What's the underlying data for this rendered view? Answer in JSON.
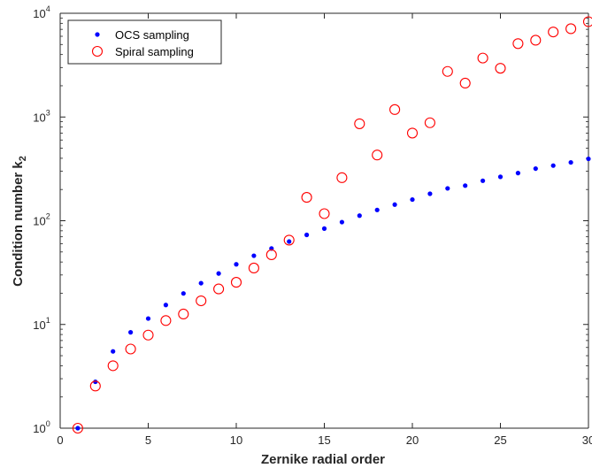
{
  "chart_data": {
    "type": "scatter",
    "xlabel": "Zernike radial order",
    "ylabel_main": "Condition number k",
    "ylabel_sub": "2",
    "xlim": [
      0,
      30
    ],
    "ylim": [
      1,
      10000
    ],
    "yscale": "log",
    "xticks": [
      0,
      5,
      10,
      15,
      20,
      25,
      30
    ],
    "yticks": [
      {
        "value": 1,
        "base": "10",
        "exp": "0"
      },
      {
        "value": 10,
        "base": "10",
        "exp": "1"
      },
      {
        "value": 100,
        "base": "10",
        "exp": "2"
      },
      {
        "value": 1000,
        "base": "10",
        "exp": "3"
      },
      {
        "value": 10000,
        "base": "10",
        "exp": "4"
      }
    ],
    "grid": false,
    "legend_position": "top-left",
    "series": [
      {
        "name": "OCS sampling",
        "marker": "filled-dot",
        "color": "#0000ff",
        "x": [
          1,
          2,
          3,
          4,
          5,
          6,
          7,
          8,
          9,
          10,
          11,
          12,
          13,
          14,
          15,
          16,
          17,
          18,
          19,
          20,
          21,
          22,
          23,
          24,
          25,
          26,
          27,
          28,
          29,
          30
        ],
        "y": [
          1.0,
          2.8,
          5.5,
          8.4,
          11.4,
          15.4,
          19.9,
          25,
          31,
          38,
          46,
          54,
          63,
          73,
          84,
          97,
          112,
          127,
          143,
          160,
          182,
          205,
          218,
          243,
          265,
          288,
          318,
          340,
          365,
          395
        ]
      },
      {
        "name": "Spiral sampling",
        "marker": "open-circle",
        "color": "#ff0000",
        "x": [
          1,
          2,
          3,
          4,
          5,
          6,
          7,
          8,
          9,
          10,
          11,
          12,
          13,
          14,
          15,
          16,
          17,
          18,
          19,
          20,
          21,
          22,
          23,
          24,
          25,
          26,
          27,
          28,
          29,
          30
        ],
        "y": [
          1.0,
          2.55,
          4.0,
          5.8,
          7.9,
          10.9,
          12.6,
          16.9,
          22,
          25.5,
          35,
          47,
          65,
          168,
          117,
          260,
          860,
          430,
          1180,
          700,
          880,
          2750,
          2120,
          3700,
          2950,
          5100,
          5500,
          6600,
          7100,
          8300
        ]
      }
    ]
  }
}
